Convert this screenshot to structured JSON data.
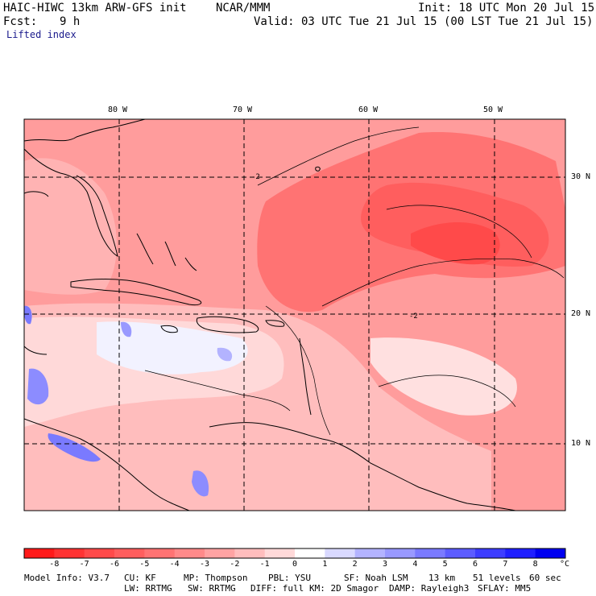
{
  "header": {
    "model_title": "HAIC-HIWC 13km ARW-GFS init",
    "org": "NCAR/MMM",
    "init": "Init: 18 UTC Mon 20 Jul 15",
    "fcst_label": "Fcst:",
    "fcst_value": "9 h",
    "valid": "Valid: 03 UTC Tue 21 Jul 15 (00 LST Tue 21 Jul 15)",
    "field": "Lifted index"
  },
  "map": {
    "lon_labels": [
      "80 W",
      "70 W",
      "60 W",
      "50 W"
    ],
    "lat_labels": [
      "30 N",
      "20 N",
      "10 N"
    ],
    "contour_label": "-2"
  },
  "colorbar": {
    "tick_labels": [
      "-8",
      "-7",
      "-6",
      "-5",
      "-4",
      "-3",
      "-2",
      "-1",
      "0",
      "1",
      "2",
      "3",
      "4",
      "5",
      "6",
      "7",
      "8"
    ],
    "unit": "°C",
    "colors": [
      "#ff1a1a",
      "#ff3333",
      "#ff4a4a",
      "#ff5e5e",
      "#ff7373",
      "#ff8a8a",
      "#ffa3a3",
      "#ffbdbd",
      "#ffd9d9",
      "#ffffff",
      "#d9d9ff",
      "#b3b3ff",
      "#9999ff",
      "#7a7aff",
      "#5c5cff",
      "#3d3dff",
      "#1f1fff",
      "#0000f0"
    ]
  },
  "footer": {
    "line1": [
      "Model Info: V3.7",
      "CU: KF",
      "MP: Thompson",
      "PBL: YSU",
      "SF: Noah LSM",
      "13 km",
      "51 levels",
      "60 sec"
    ],
    "line2": [
      "LW: RRTMG",
      "SW: RRTMG",
      "DIFF: full",
      "KM: 2D Smagor",
      "DAMP: Rayleigh3",
      "SFLAY: MM5"
    ]
  }
}
